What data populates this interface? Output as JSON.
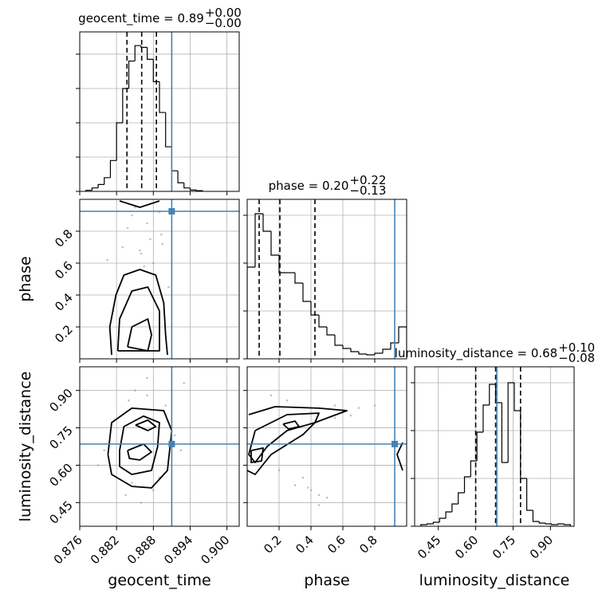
{
  "chart_data": {
    "type": "corner",
    "truth_color": "#4682b4",
    "grid": true,
    "parameters": [
      {
        "label": "geocent_time",
        "title": {
          "text": "geocent_time = 0.89",
          "upper": "+0.00",
          "lower": "−0.00"
        },
        "xlim": [
          0.876,
          0.902
        ],
        "xticks": [
          0.876,
          0.882,
          0.888,
          0.894,
          {
            "value": 0.9,
            "label": "0.900"
          }
        ],
        "truth": 0.891,
        "quantiles": [
          0.8837,
          0.8861,
          0.8885
        ],
        "hist": {
          "bins": [
            0.877,
            0.878,
            0.879,
            0.88,
            0.881,
            0.882,
            0.883,
            0.884,
            0.885,
            0.886,
            0.887,
            0.888,
            0.889,
            0.89,
            0.891,
            0.892,
            0.893,
            0.894,
            0.895,
            0.896
          ],
          "counts": [
            0.03,
            0.1,
            0.2,
            0.4,
            0.9,
            2.0,
            3.0,
            3.8,
            4.25,
            4.2,
            3.85,
            3.2,
            2.3,
            1.3,
            0.6,
            0.25,
            0.1,
            0.04,
            0.02
          ],
          "ylim": [
            0,
            4.65
          ],
          "yticks": [
            0,
            1,
            2,
            3,
            4
          ]
        }
      },
      {
        "label": "phase",
        "title": {
          "text": "phase = 0.20",
          "upper": "+0.22",
          "lower": "−0.13"
        },
        "xlim": [
          0,
          1
        ],
        "xticks": [
          0.2,
          0.4,
          0.6,
          0.8
        ],
        "truth": 0.925,
        "quantiles": [
          0.075,
          0.205,
          0.425
        ],
        "hist": {
          "bins": [
            0,
            0.05,
            0.1,
            0.15,
            0.2,
            0.25,
            0.3,
            0.35,
            0.4,
            0.45,
            0.5,
            0.55,
            0.6,
            0.65,
            0.7,
            0.75,
            0.8,
            0.85,
            0.9,
            0.95,
            1.0
          ],
          "counts": [
            115,
            182,
            160,
            130,
            108,
            108,
            95,
            72,
            55,
            40,
            30,
            17,
            13,
            9,
            6,
            5,
            7,
            12,
            20,
            40
          ],
          "ylim": [
            0,
            200
          ],
          "yticks": [
            0,
            60,
            120,
            180
          ]
        }
      },
      {
        "label": "luminosity_distance",
        "title": {
          "text": "luminosity_distance = 0.68",
          "upper": "+0.10",
          "lower": "−0.08"
        },
        "xlim": [
          0.355,
          0.995
        ],
        "xticks": [
          0.45,
          {
            "value": 0.6,
            "label": "0.60"
          },
          0.75,
          {
            "value": 0.9,
            "label": "0.90"
          }
        ],
        "truth": 0.685,
        "quantiles": [
          0.6,
          0.68,
          0.78
        ],
        "hist": {
          "bins": [
            0.38,
            0.405,
            0.43,
            0.455,
            0.48,
            0.505,
            0.53,
            0.555,
            0.58,
            0.605,
            0.63,
            0.655,
            0.68,
            0.705,
            0.73,
            0.755,
            0.78,
            0.805,
            0.83,
            0.855,
            0.88,
            0.905,
            0.93,
            0.955,
            0.98
          ],
          "counts": [
            2,
            3,
            5,
            10,
            18,
            28,
            42,
            62,
            82,
            118,
            152,
            178,
            155,
            80,
            180,
            145,
            60,
            20,
            6,
            4,
            3,
            2,
            3,
            2
          ],
          "ylim": [
            0,
            200
          ],
          "yticks": [
            0,
            60,
            120,
            180
          ]
        }
      }
    ],
    "pairs": [
      {
        "x": 0,
        "y": 1,
        "contours": [
          {
            "x": [
              0.8812,
              0.8809,
              0.8819,
              0.8832,
              0.8858,
              0.8884,
              0.8897,
              0.89,
              0.8903
            ],
            "y": [
              0.025,
              0.2,
              0.4,
              0.525,
              0.56,
              0.525,
              0.35,
              0.15,
              0.025
            ]
          },
          {
            "x": [
              0.8822,
              0.8825,
              0.8845,
              0.8871,
              0.889,
              0.889,
              0.8822
            ],
            "y": [
              0.05,
              0.25,
              0.425,
              0.45,
              0.3,
              0.05,
              0.05
            ]
          },
          {
            "x": [
              0.8838,
              0.8845,
              0.8871,
              0.8877,
              0.8871,
              0.8838
            ],
            "y": [
              0.075,
              0.2,
              0.25,
              0.15,
              0.05,
              0.075
            ]
          },
          {
            "x": [
              0.8825,
              0.8858,
              0.889
            ],
            "y": [
              0.99,
              0.95,
              0.99
            ]
          }
        ],
        "points": {
          "x": [
            0.8805,
            0.883,
            0.887,
            0.8893,
            0.886,
            0.8845,
            0.888,
            0.8895,
            0.8815,
            0.885,
            0.8905,
            0.8875,
            0.8838,
            0.8865,
            0.889,
            0.8858
          ],
          "y": [
            0.62,
            0.7,
            0.85,
            0.78,
            0.66,
            0.9,
            0.6,
            0.72,
            0.3,
            0.95,
            0.45,
            0.75,
            0.82,
            0.58,
            0.92,
            0.68
          ]
        }
      },
      {
        "x": 0,
        "y": 2,
        "contours": [
          {
            "x": [
              0.8806,
              0.8812,
              0.8845,
              0.8897,
              0.891,
              0.8903,
              0.8877,
              0.8845,
              0.8812,
              0.8806
            ],
            "y": [
              0.643,
              0.771,
              0.829,
              0.819,
              0.739,
              0.579,
              0.509,
              0.515,
              0.563,
              0.643
            ]
          },
          {
            "x": [
              0.8825,
              0.8832,
              0.8864,
              0.889,
              0.8887,
              0.8877,
              0.8845,
              0.8825,
              0.8825
            ],
            "y": [
              0.659,
              0.755,
              0.797,
              0.771,
              0.675,
              0.579,
              0.563,
              0.595,
              0.659
            ]
          },
          {
            "x": [
              0.8851,
              0.8871,
              0.8884,
              0.8871,
              0.8851
            ],
            "y": [
              0.761,
              0.781,
              0.755,
              0.739,
              0.761
            ]
          },
          {
            "x": [
              0.8838,
              0.8864,
              0.8877,
              0.8858,
              0.8841,
              0.8838
            ],
            "y": [
              0.659,
              0.685,
              0.653,
              0.621,
              0.627,
              0.659
            ]
          }
        ],
        "points": {
          "x": [
            0.879,
            0.881,
            0.884,
            0.887,
            0.89,
            0.893,
            0.8835,
            0.886,
            0.888,
            0.8925,
            0.88,
            0.887,
            0.889,
            0.885,
            0.8915,
            0.8845
          ],
          "y": [
            0.6,
            0.74,
            0.86,
            0.88,
            0.84,
            0.93,
            0.48,
            0.45,
            0.5,
            0.66,
            0.66,
            0.95,
            0.55,
            0.9,
            0.72,
            0.53
          ]
        }
      },
      {
        "x": 1,
        "y": 2,
        "contours": [
          {
            "x": [
              0.01,
              0.175,
              0.45,
              0.625,
              0.425,
              0.35,
              0.15,
              0.05,
              0
            ],
            "y": [
              0.803,
              0.835,
              0.829,
              0.819,
              0.771,
              0.723,
              0.643,
              0.563,
              0.579
            ]
          },
          {
            "x": [
              0.05,
              0.25,
              0.45,
              0.425,
              0.25,
              0.125,
              0.05,
              0.01,
              0.05
            ],
            "y": [
              0.739,
              0.803,
              0.809,
              0.771,
              0.739,
              0.675,
              0.611,
              0.643,
              0.739
            ]
          },
          {
            "x": [
              0.225,
              0.3,
              0.325,
              0.26,
              0.225
            ],
            "y": [
              0.765,
              0.777,
              0.755,
              0.745,
              0.765
            ]
          },
          {
            "x": [
              0.025,
              0.1,
              0.09,
              0.025,
              0.025
            ],
            "y": [
              0.659,
              0.669,
              0.617,
              0.611,
              0.659
            ]
          },
          {
            "x": [
              0.975,
              0.94,
              0.975
            ],
            "y": [
              0.691,
              0.643,
              0.579
            ]
          }
        ],
        "points": {
          "x": [
            0.3,
            0.45,
            0.55,
            0.6,
            0.7,
            0.35,
            0.4,
            0.5,
            0.2,
            0.25,
            0.65,
            0.8,
            0.15,
            0.45,
            0.38,
            0.55
          ],
          "y": [
            0.52,
            0.48,
            0.84,
            0.82,
            0.83,
            0.55,
            0.5,
            0.47,
            0.58,
            0.86,
            0.8,
            0.84,
            0.88,
            0.44,
            0.51,
            0.79
          ]
        }
      }
    ]
  }
}
